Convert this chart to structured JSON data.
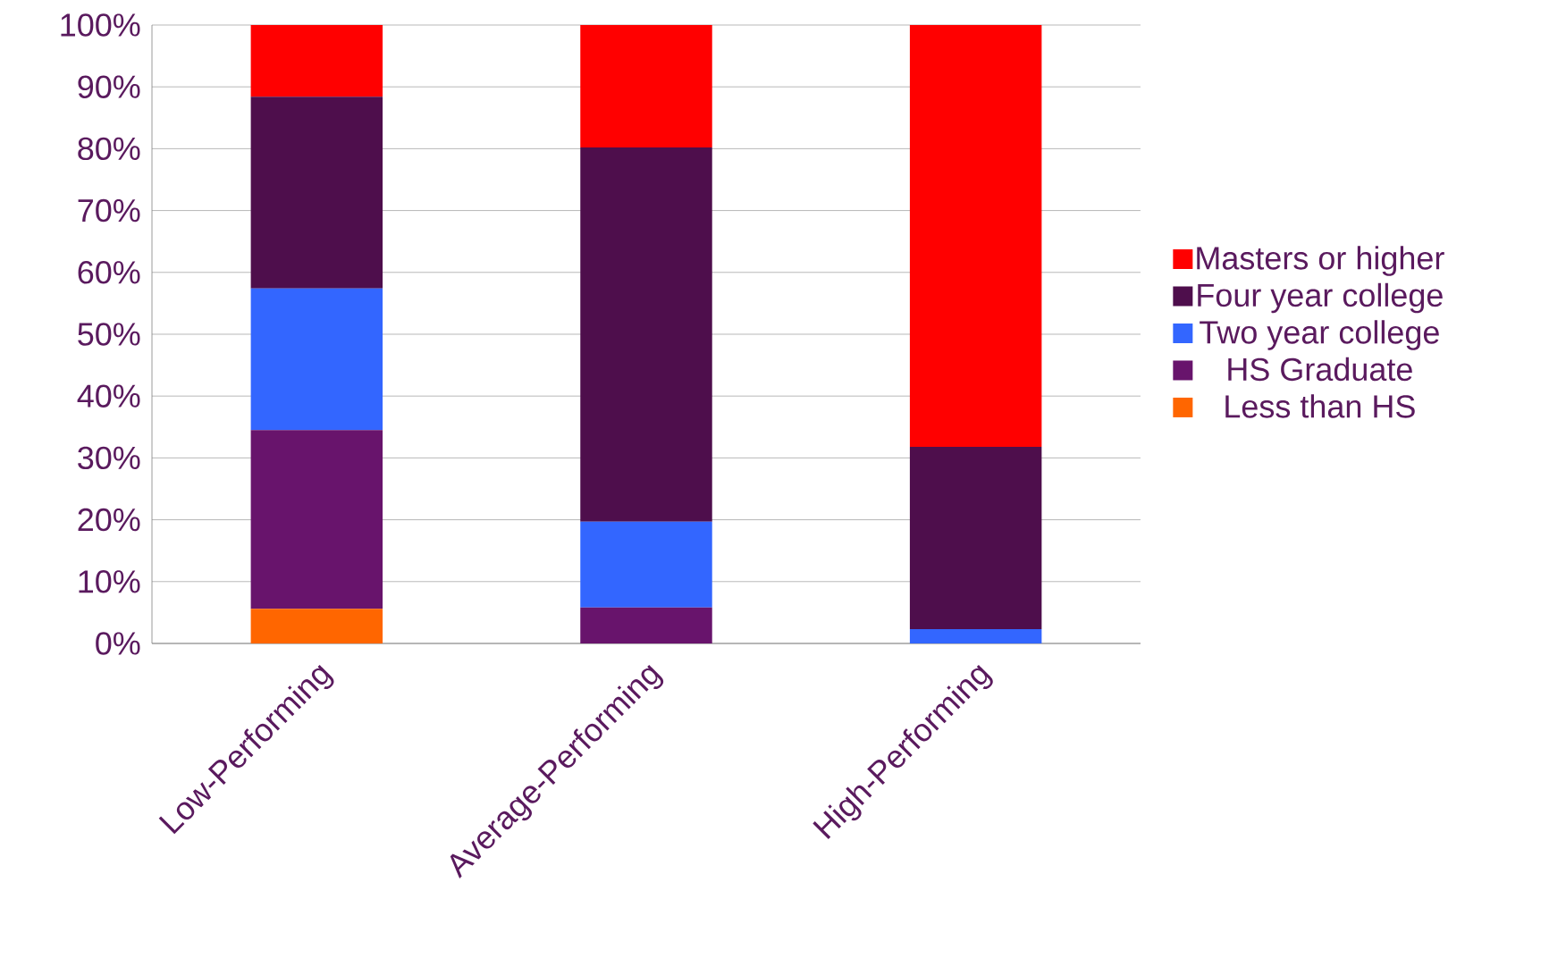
{
  "chart_data": {
    "type": "bar",
    "stacked": true,
    "categories": [
      "Low-Performing",
      "Average-Performing",
      "High-Performing"
    ],
    "series": [
      {
        "name": "Less than HS",
        "color": "#ff6600",
        "values": [
          5.6,
          0,
          0
        ]
      },
      {
        "name": "HS Graduate",
        "color": "#68146c",
        "values": [
          28.9,
          5.8,
          0
        ]
      },
      {
        "name": "Two year college",
        "color": "#3366ff",
        "values": [
          22.9,
          13.9,
          2.3
        ]
      },
      {
        "name": "Four year college",
        "color": "#4e0e4c",
        "values": [
          31.0,
          60.5,
          29.5
        ]
      },
      {
        "name": "Masters or higher",
        "color": "#ff0000",
        "values": [
          11.6,
          19.8,
          68.2
        ]
      }
    ],
    "ylim": [
      0,
      100
    ],
    "yticks": [
      {
        "value": 0,
        "label": "0%"
      },
      {
        "value": 10,
        "label": "10%"
      },
      {
        "value": 20,
        "label": "20%"
      },
      {
        "value": 30,
        "label": "30%"
      },
      {
        "value": 40,
        "label": "40%"
      },
      {
        "value": 50,
        "label": "50%"
      },
      {
        "value": 60,
        "label": "60%"
      },
      {
        "value": 70,
        "label": "70%"
      },
      {
        "value": 80,
        "label": "80%"
      },
      {
        "value": 90,
        "label": "90%"
      },
      {
        "value": 100,
        "label": "100%"
      }
    ],
    "grid": "y",
    "legend": "right"
  }
}
